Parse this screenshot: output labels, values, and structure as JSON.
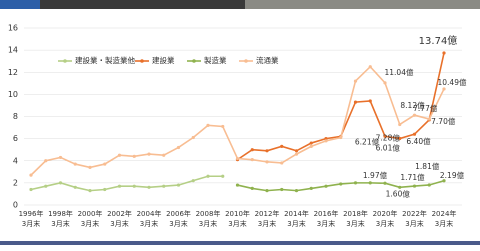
{
  "chart_data": {
    "type": "line",
    "categories": [
      [
        "1996年",
        "3月末"
      ],
      null,
      [
        "1998年",
        "3月末"
      ],
      null,
      [
        "2000年",
        "3月末"
      ],
      null,
      [
        "2002年",
        "3月末"
      ],
      null,
      [
        "2004年",
        "3月末"
      ],
      null,
      [
        "2006年",
        "3月末"
      ],
      null,
      [
        "2008年",
        "3月末"
      ],
      null,
      [
        "2010年",
        "3月末"
      ],
      null,
      [
        "2012年",
        "3月末"
      ],
      null,
      [
        "2014年",
        "3月末"
      ],
      null,
      [
        "2016年",
        "3月末"
      ],
      null,
      [
        "2018年",
        "3月末"
      ],
      null,
      [
        "2020年",
        "3月末"
      ],
      null,
      [
        "2022年",
        "3月末"
      ],
      null,
      [
        "2024年",
        "3月末"
      ]
    ],
    "ylim": [
      0,
      16
    ],
    "yticks": [
      0,
      2,
      4,
      6,
      8,
      10,
      12,
      14,
      16
    ],
    "grid": true,
    "series": [
      {
        "name": "建設業・製造業他",
        "color": "#b5cf86",
        "values": [
          1.4,
          1.7,
          2.0,
          1.6,
          1.3,
          1.4,
          1.7,
          1.7,
          1.6,
          1.7,
          1.8,
          2.2,
          2.6,
          2.6,
          null,
          null,
          null,
          null,
          null,
          null,
          null,
          null,
          null,
          null,
          null,
          null,
          null,
          null,
          null
        ]
      },
      {
        "name": "建設業",
        "color": "#e8702a",
        "values": [
          null,
          null,
          null,
          null,
          null,
          null,
          null,
          null,
          null,
          null,
          null,
          null,
          null,
          null,
          4.1,
          5.0,
          4.9,
          5.3,
          4.9,
          5.6,
          6.0,
          6.2,
          9.3,
          9.4,
          6.21,
          6.01,
          6.4,
          7.7,
          13.74
        ],
        "value_labels": [
          null,
          null,
          null,
          null,
          null,
          null,
          null,
          null,
          null,
          null,
          null,
          null,
          null,
          null,
          null,
          null,
          null,
          null,
          null,
          null,
          null,
          null,
          null,
          null,
          "6.21億",
          "6.01億",
          "6.40億",
          "7.70億",
          "13.74億"
        ]
      },
      {
        "name": "製造業",
        "color": "#8fb24e",
        "values": [
          null,
          null,
          null,
          null,
          null,
          null,
          null,
          null,
          null,
          null,
          null,
          null,
          null,
          null,
          1.8,
          1.5,
          1.3,
          1.4,
          1.3,
          1.5,
          1.7,
          1.9,
          2.0,
          2.0,
          1.97,
          1.6,
          1.71,
          1.81,
          2.19
        ],
        "value_labels": [
          null,
          null,
          null,
          null,
          null,
          null,
          null,
          null,
          null,
          null,
          null,
          null,
          null,
          null,
          null,
          null,
          null,
          null,
          null,
          null,
          null,
          null,
          null,
          null,
          "1.97億",
          "1.60億",
          "1.71億",
          "1.81億",
          "2.19億"
        ]
      },
      {
        "name": "流通業",
        "color": "#f8bd92",
        "values": [
          2.7,
          4.0,
          4.3,
          3.7,
          3.4,
          3.7,
          4.5,
          4.4,
          4.6,
          4.5,
          5.2,
          6.1,
          7.2,
          7.1,
          4.2,
          4.1,
          3.9,
          3.8,
          4.6,
          5.3,
          5.8,
          6.1,
          11.2,
          12.5,
          11.04,
          7.28,
          8.12,
          7.77,
          10.49
        ],
        "value_labels": [
          null,
          null,
          null,
          null,
          null,
          null,
          null,
          null,
          null,
          null,
          null,
          null,
          null,
          null,
          null,
          null,
          null,
          null,
          null,
          null,
          null,
          null,
          null,
          null,
          "11.04億",
          "7.28億",
          "8.12億",
          "7.77億",
          "10.49億"
        ]
      }
    ]
  }
}
